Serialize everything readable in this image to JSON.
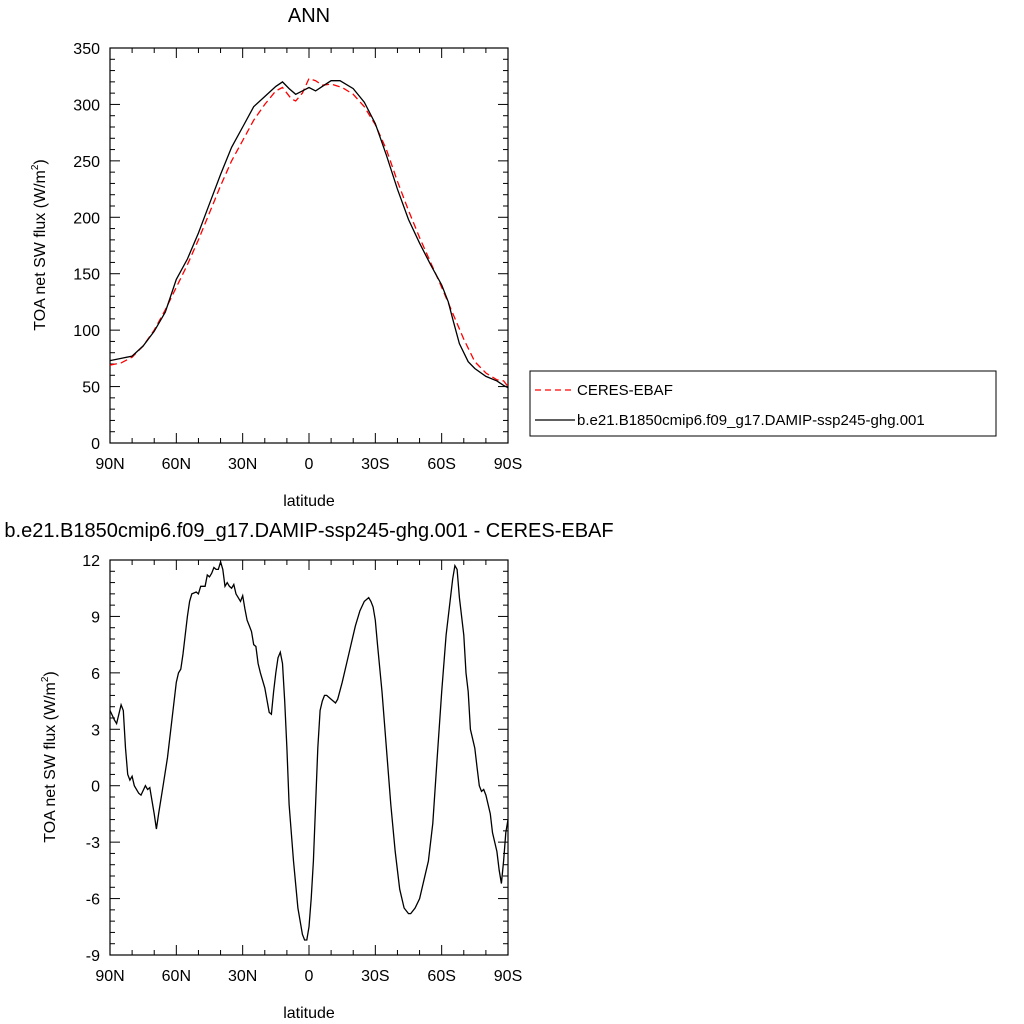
{
  "chart_data": [
    {
      "type": "line",
      "title": "ANN",
      "xlabel": "latitude",
      "ylabel_main": "TOA net SW flux (W/m",
      "ylabel_sup": "2",
      "ylabel_tail": ")",
      "xlim": [
        90,
        -90
      ],
      "ylim": [
        0,
        350
      ],
      "xticks": [
        {
          "value": 90,
          "label": "90N"
        },
        {
          "value": 60,
          "label": "60N"
        },
        {
          "value": 30,
          "label": "30N"
        },
        {
          "value": 0,
          "label": "0"
        },
        {
          "value": -30,
          "label": "30S"
        },
        {
          "value": -60,
          "label": "60S"
        },
        {
          "value": -90,
          "label": "90S"
        }
      ],
      "yticks": [
        {
          "value": 0,
          "label": "0"
        },
        {
          "value": 50,
          "label": "50"
        },
        {
          "value": 100,
          "label": "100"
        },
        {
          "value": 150,
          "label": "150"
        },
        {
          "value": 200,
          "label": "200"
        },
        {
          "value": 250,
          "label": "250"
        },
        {
          "value": 300,
          "label": "300"
        },
        {
          "value": 350,
          "label": "350"
        }
      ],
      "grid": false,
      "legend_placement": "right",
      "series": [
        {
          "name": "CERES-EBAF",
          "color": "#ff0000",
          "dash": "dashed",
          "points": [
            [
              90,
              69
            ],
            [
              85,
              71
            ],
            [
              80,
              76
            ],
            [
              75,
              86
            ],
            [
              70,
              100
            ],
            [
              65,
              118
            ],
            [
              60,
              138
            ],
            [
              55,
              158
            ],
            [
              50,
              180
            ],
            [
              45,
              204
            ],
            [
              40,
              228
            ],
            [
              35,
              250
            ],
            [
              30,
              268
            ],
            [
              25,
              286
            ],
            [
              20,
              300
            ],
            [
              15,
              312
            ],
            [
              12,
              315
            ],
            [
              8,
              305
            ],
            [
              6,
              303
            ],
            [
              3,
              310
            ],
            [
              0,
              323
            ],
            [
              -3,
              321
            ],
            [
              -6,
              317
            ],
            [
              -10,
              318
            ],
            [
              -15,
              315
            ],
            [
              -20,
              309
            ],
            [
              -25,
              298
            ],
            [
              -30,
              282
            ],
            [
              -35,
              260
            ],
            [
              -40,
              232
            ],
            [
              -45,
              206
            ],
            [
              -50,
              182
            ],
            [
              -55,
              160
            ],
            [
              -60,
              138
            ],
            [
              -65,
              115
            ],
            [
              -70,
              92
            ],
            [
              -75,
              72
            ],
            [
              -80,
              62
            ],
            [
              -85,
              56
            ],
            [
              -88,
              55
            ],
            [
              -90,
              50
            ]
          ]
        },
        {
          "name": "b.e21.B1850cmip6.f09_g17.DAMIP-ssp245-ghg.001",
          "color": "#000000",
          "dash": "solid",
          "points": [
            [
              90,
              73
            ],
            [
              85,
              75
            ],
            [
              80,
              77
            ],
            [
              75,
              86
            ],
            [
              70,
              99
            ],
            [
              65,
              116
            ],
            [
              60,
              145
            ],
            [
              55,
              163
            ],
            [
              50,
              186
            ],
            [
              45,
              212
            ],
            [
              40,
              238
            ],
            [
              35,
              262
            ],
            [
              30,
              280
            ],
            [
              25,
              298
            ],
            [
              20,
              307
            ],
            [
              15,
              316
            ],
            [
              12,
              320
            ],
            [
              9,
              314
            ],
            [
              6,
              309
            ],
            [
              3,
              312
            ],
            [
              0,
              315
            ],
            [
              -3,
              312
            ],
            [
              -6,
              316
            ],
            [
              -10,
              321
            ],
            [
              -14,
              321
            ],
            [
              -20,
              314
            ],
            [
              -25,
              302
            ],
            [
              -30,
              283
            ],
            [
              -35,
              255
            ],
            [
              -40,
              225
            ],
            [
              -45,
              198
            ],
            [
              -50,
              177
            ],
            [
              -55,
              158
            ],
            [
              -60,
              140
            ],
            [
              -63,
              125
            ],
            [
              -65,
              110
            ],
            [
              -68,
              88
            ],
            [
              -72,
              72
            ],
            [
              -75,
              66
            ],
            [
              -80,
              59
            ],
            [
              -85,
              55
            ],
            [
              -88,
              51
            ],
            [
              -90,
              49
            ]
          ]
        }
      ]
    },
    {
      "type": "line",
      "title": "b.e21.B1850cmip6.f09_g17.DAMIP-ssp245-ghg.001 - CERES-EBAF",
      "xlabel": "latitude",
      "ylabel_main": "TOA net SW flux (W/m",
      "ylabel_sup": "2",
      "ylabel_tail": ")",
      "xlim": [
        90,
        -90
      ],
      "ylim": [
        -9,
        12
      ],
      "xticks": [
        {
          "value": 90,
          "label": "90N"
        },
        {
          "value": 60,
          "label": "60N"
        },
        {
          "value": 30,
          "label": "30N"
        },
        {
          "value": 0,
          "label": "0"
        },
        {
          "value": -30,
          "label": "30S"
        },
        {
          "value": -60,
          "label": "60S"
        },
        {
          "value": -90,
          "label": "90S"
        }
      ],
      "yticks": [
        {
          "value": -9,
          "label": "-9"
        },
        {
          "value": -6,
          "label": "-6"
        },
        {
          "value": -3,
          "label": "-3"
        },
        {
          "value": 0,
          "label": "0"
        },
        {
          "value": 3,
          "label": "3"
        },
        {
          "value": 6,
          "label": "6"
        },
        {
          "value": 9,
          "label": "9"
        },
        {
          "value": 12,
          "label": "12"
        }
      ],
      "grid": false,
      "series": [
        {
          "name": "",
          "color": "#000000",
          "dash": "solid",
          "points": [
            [
              90,
              4.0
            ],
            [
              88,
              3.5
            ],
            [
              87,
              3.3
            ],
            [
              85,
              4.3
            ],
            [
              84,
              4.0
            ],
            [
              83,
              2.0
            ],
            [
              82,
              0.6
            ],
            [
              81,
              0.3
            ],
            [
              80,
              0.5
            ],
            [
              79,
              0.0
            ],
            [
              77,
              -0.4
            ],
            [
              76,
              -0.5
            ],
            [
              74,
              0.0
            ],
            [
              73,
              -0.2
            ],
            [
              72,
              -0.1
            ],
            [
              70,
              -1.5
            ],
            [
              69,
              -2.3
            ],
            [
              68,
              -1.5
            ],
            [
              66,
              0.0
            ],
            [
              64,
              1.5
            ],
            [
              62,
              3.5
            ],
            [
              60,
              5.5
            ],
            [
              59,
              6.0
            ],
            [
              58,
              6.2
            ],
            [
              57,
              7.0
            ],
            [
              56,
              8.0
            ],
            [
              55,
              9.0
            ],
            [
              54,
              9.8
            ],
            [
              53,
              10.2
            ],
            [
              51,
              10.3
            ],
            [
              50,
              10.2
            ],
            [
              49,
              10.6
            ],
            [
              47,
              10.6
            ],
            [
              46,
              11.2
            ],
            [
              45,
              11.1
            ],
            [
              44,
              11.3
            ],
            [
              43,
              11.6
            ],
            [
              42,
              11.5
            ],
            [
              41,
              11.5
            ],
            [
              40,
              11.9
            ],
            [
              39,
              11.5
            ],
            [
              38,
              10.6
            ],
            [
              37,
              10.8
            ],
            [
              36,
              10.6
            ],
            [
              35,
              10.5
            ],
            [
              34,
              10.7
            ],
            [
              33,
              10.2
            ],
            [
              32,
              10.0
            ],
            [
              31,
              9.8
            ],
            [
              30,
              10.1
            ],
            [
              29,
              9.4
            ],
            [
              28,
              8.8
            ],
            [
              27,
              8.5
            ],
            [
              26,
              8.2
            ],
            [
              25,
              7.5
            ],
            [
              24,
              7.4
            ],
            [
              23,
              6.5
            ],
            [
              22,
              6.0
            ],
            [
              20,
              5.2
            ],
            [
              18,
              3.9
            ],
            [
              17,
              3.8
            ],
            [
              16,
              5.0
            ],
            [
              15,
              6.0
            ],
            [
              14,
              6.8
            ],
            [
              13,
              7.1
            ],
            [
              12,
              6.5
            ],
            [
              11,
              4.5
            ],
            [
              10,
              2.0
            ],
            [
              9,
              -1.0
            ],
            [
              7,
              -4.0
            ],
            [
              5,
              -6.5
            ],
            [
              3,
              -7.9
            ],
            [
              2,
              -8.2
            ],
            [
              1,
              -8.2
            ],
            [
              0,
              -7.5
            ],
            [
              -1,
              -6.0
            ],
            [
              -2,
              -4.0
            ],
            [
              -3,
              -1.0
            ],
            [
              -4,
              2.0
            ],
            [
              -5,
              4.0
            ],
            [
              -6,
              4.5
            ],
            [
              -7,
              4.8
            ],
            [
              -8,
              4.8
            ],
            [
              -10,
              4.6
            ],
            [
              -12,
              4.4
            ],
            [
              -13,
              4.6
            ],
            [
              -15,
              5.5
            ],
            [
              -17,
              6.5
            ],
            [
              -19,
              7.5
            ],
            [
              -21,
              8.5
            ],
            [
              -23,
              9.3
            ],
            [
              -25,
              9.8
            ],
            [
              -27,
              10.0
            ],
            [
              -28,
              9.8
            ],
            [
              -29,
              9.5
            ],
            [
              -30,
              8.8
            ],
            [
              -31,
              7.5
            ],
            [
              -33,
              5.0
            ],
            [
              -35,
              2.0
            ],
            [
              -37,
              -1.0
            ],
            [
              -39,
              -3.5
            ],
            [
              -41,
              -5.5
            ],
            [
              -43,
              -6.5
            ],
            [
              -45,
              -6.8
            ],
            [
              -46,
              -6.8
            ],
            [
              -48,
              -6.5
            ],
            [
              -50,
              -6.0
            ],
            [
              -52,
              -5.0
            ],
            [
              -54,
              -4.0
            ],
            [
              -56,
              -2.0
            ],
            [
              -58,
              1.5
            ],
            [
              -60,
              5.0
            ],
            [
              -62,
              8.0
            ],
            [
              -64,
              10.0
            ],
            [
              -65,
              11.0
            ],
            [
              -66,
              11.7
            ],
            [
              -67,
              11.5
            ],
            [
              -68,
              10.0
            ],
            [
              -70,
              8.0
            ],
            [
              -71,
              6.0
            ],
            [
              -72,
              5.0
            ],
            [
              -73,
              3.0
            ],
            [
              -74,
              2.5
            ],
            [
              -75,
              2.0
            ],
            [
              -76,
              1.0
            ],
            [
              -77,
              0.0
            ],
            [
              -78,
              -0.3
            ],
            [
              -79,
              -0.2
            ],
            [
              -80,
              -0.5
            ],
            [
              -82,
              -1.5
            ],
            [
              -83,
              -2.5
            ],
            [
              -85,
              -3.5
            ],
            [
              -86,
              -4.5
            ],
            [
              -87,
              -5.2
            ],
            [
              -88,
              -4.0
            ],
            [
              -89,
              -2.5
            ],
            [
              -90,
              -1.8
            ]
          ]
        }
      ]
    }
  ]
}
